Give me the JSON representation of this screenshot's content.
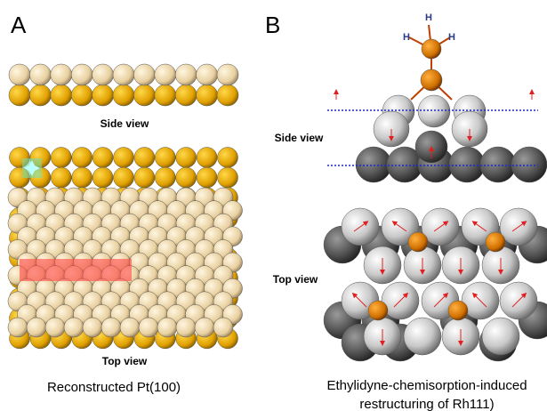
{
  "panel_a": {
    "label": "A",
    "side_view": "Side view",
    "top_view": "Top view",
    "caption": "Reconstructed Pt(100)"
  },
  "panel_b": {
    "label": "B",
    "side_view": "Side view",
    "top_view": "Top view",
    "caption": [
      "Ethylidyne-chemisorption-induced",
      "restructuring of Rh111)"
    ],
    "hydrogen_labels": [
      "H",
      "H",
      "H"
    ]
  }
}
